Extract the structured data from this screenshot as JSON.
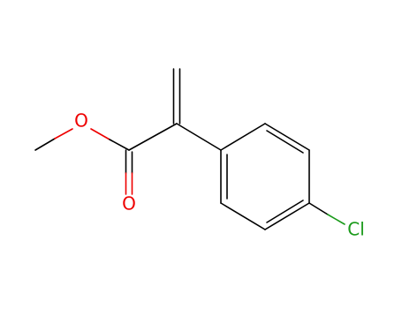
{
  "atoms": [
    {
      "label": "O"
    },
    {
      "label": "O"
    },
    {
      "label": "Cl"
    }
  ]
}
